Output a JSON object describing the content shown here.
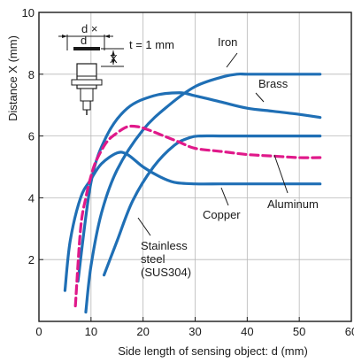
{
  "chart_data": {
    "type": "line",
    "title": "",
    "xlabel": "Side length of sensing object: d (mm)",
    "ylabel": "Distance X (mm)",
    "xlim": [
      0,
      60
    ],
    "ylim": [
      0,
      10
    ],
    "xticks": [
      0,
      10,
      20,
      30,
      40,
      50,
      60
    ],
    "yticks": [
      2,
      4,
      6,
      8,
      10
    ],
    "grid": true,
    "legend": "none",
    "inset_text": {
      "thickness": "t = 1 mm",
      "d_dim": "d ×",
      "d_dim2": "d",
      "x_dim": "X"
    },
    "series": [
      {
        "name": "Iron",
        "color": "#1f6fb5",
        "dashed": false,
        "x": [
          9,
          10,
          12,
          15,
          20,
          25,
          30,
          35,
          38,
          40,
          45,
          50,
          54
        ],
        "y": [
          0.3,
          1.8,
          3.5,
          4.9,
          6.2,
          7.0,
          7.6,
          7.9,
          8.0,
          8.0,
          8.0,
          8.0,
          8.0
        ]
      },
      {
        "name": "Brass",
        "color": "#1f6fb5",
        "dashed": false,
        "x": [
          7.5,
          10,
          13,
          17,
          22,
          27,
          30,
          35,
          40,
          45,
          50,
          54
        ],
        "y": [
          1.3,
          4.5,
          6.0,
          6.9,
          7.3,
          7.4,
          7.3,
          7.1,
          6.9,
          6.8,
          6.7,
          6.6
        ]
      },
      {
        "name": "Aluminum",
        "color": "#1f6fb5",
        "dashed": false,
        "x": [
          12.5,
          15,
          18,
          22,
          26,
          29,
          31,
          35,
          40,
          45,
          50,
          54
        ],
        "y": [
          1.5,
          2.6,
          3.9,
          5.0,
          5.7,
          5.95,
          6.0,
          6.0,
          6.0,
          6.0,
          6.0,
          6.0
        ]
      },
      {
        "name": "Copper",
        "color": "#1f6fb5",
        "dashed": false,
        "x": [
          5,
          6,
          8,
          10,
          12,
          15,
          17,
          20,
          23,
          26,
          30,
          35,
          40,
          45,
          50,
          54
        ],
        "y": [
          1.0,
          2.6,
          4.0,
          4.6,
          5.1,
          5.45,
          5.4,
          5.0,
          4.7,
          4.5,
          4.45,
          4.45,
          4.45,
          4.45,
          4.45,
          4.45
        ]
      },
      {
        "name": "Stainless steel (SUS304)",
        "color": "#e0198a",
        "dashed": true,
        "x": [
          7,
          8,
          9,
          10,
          11,
          13,
          15,
          17,
          19,
          21,
          24,
          27,
          30,
          35,
          40,
          45,
          50,
          54
        ],
        "y": [
          0.5,
          3.0,
          4.0,
          4.7,
          5.2,
          5.8,
          6.1,
          6.3,
          6.3,
          6.2,
          6.0,
          5.8,
          5.6,
          5.5,
          5.4,
          5.35,
          5.3,
          5.3
        ]
      }
    ],
    "annotations": [
      {
        "text": "Iron",
        "series": "Iron"
      },
      {
        "text": "Brass",
        "series": "Brass"
      },
      {
        "text": "Aluminum",
        "series": "Aluminum"
      },
      {
        "text": "Copper",
        "series": "Copper"
      },
      {
        "text": "Stainless",
        "series": "Stainless steel (SUS304)"
      },
      {
        "text": "steel",
        "series": "Stainless steel (SUS304)"
      },
      {
        "text": "(SUS304)",
        "series": "Stainless steel (SUS304)"
      }
    ]
  }
}
